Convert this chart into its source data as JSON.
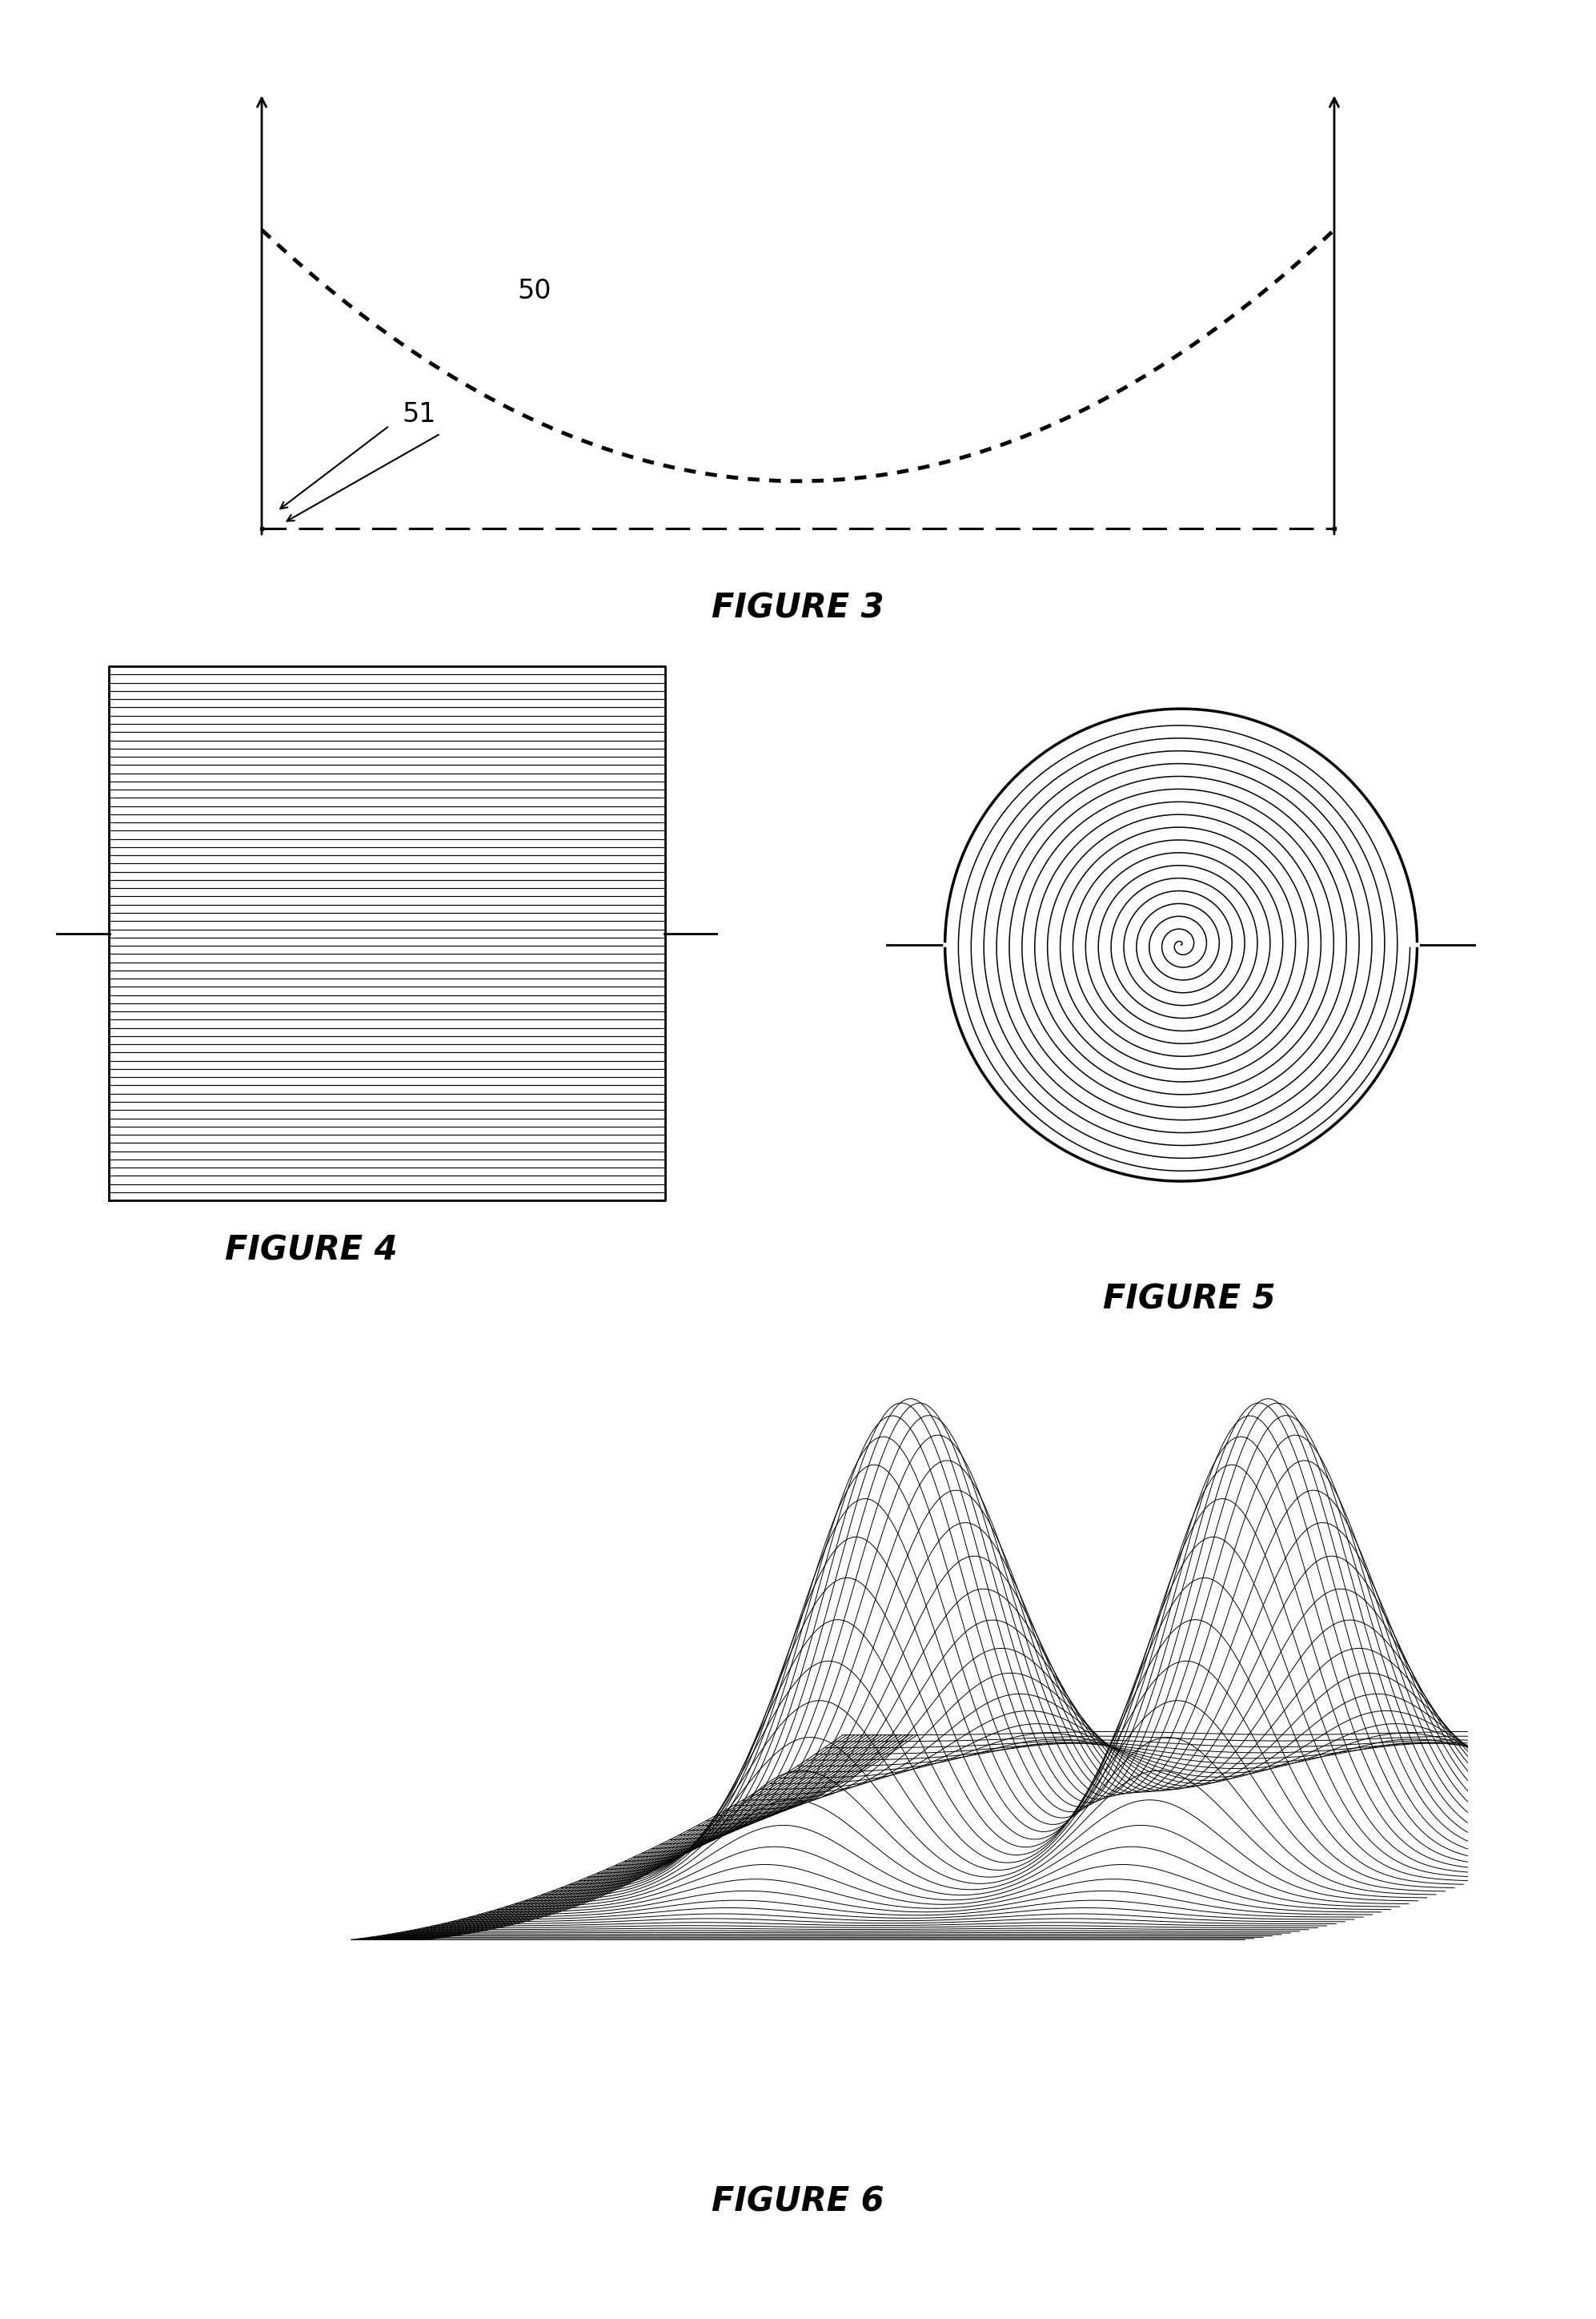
{
  "fig3_label": "FIGURE 3",
  "fig3_curve_label": "50",
  "fig3_rect_label": "51",
  "fig4_label": "FIGURE 4",
  "fig5_label": "FIGURE 5",
  "fig6_label": "FIGURE 6",
  "bg_color": "#ffffff",
  "line_color": "#000000",
  "label_fontsize": 30,
  "annotation_fontsize": 24
}
